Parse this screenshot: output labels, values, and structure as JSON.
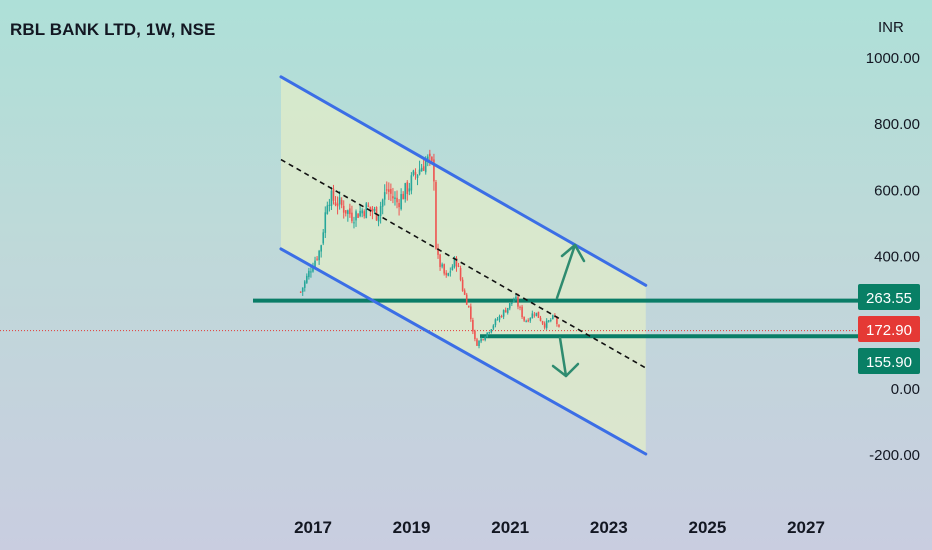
{
  "chart_data": {
    "type": "candlestick",
    "title": "RBL BANK LTD, 1W, NSE",
    "currency": "INR",
    "x_ticks": [
      "2017",
      "2019",
      "2021",
      "2023",
      "2025",
      "2027"
    ],
    "y_ticks": [
      "1000.00",
      "800.00",
      "600.00",
      "400.00",
      "0.00",
      "-200.00"
    ],
    "ylim": [
      -250,
      1000
    ],
    "xlim": [
      "2016-01",
      "2028-01"
    ],
    "price_path": [
      [
        "2016.75",
        290
      ],
      [
        "2016.95",
        360
      ],
      [
        "2017.15",
        420
      ],
      [
        "2017.3",
        580
      ],
      [
        "2017.5",
        560
      ],
      [
        "2017.8",
        520
      ],
      [
        "2018.1",
        545
      ],
      [
        "2018.3",
        525
      ],
      [
        "2018.5",
        600
      ],
      [
        "2018.7",
        560
      ],
      [
        "2018.9",
        600
      ],
      [
        "2019.1",
        650
      ],
      [
        "2019.3",
        690
      ],
      [
        "2019.45",
        660
      ],
      [
        "2019.5",
        400
      ],
      [
        "2019.7",
        330
      ],
      [
        "2019.9",
        390
      ],
      [
        "2020.05",
        290
      ],
      [
        "2020.15",
        250
      ],
      [
        "2020.3",
        130
      ],
      [
        "2020.5",
        160
      ],
      [
        "2020.7",
        200
      ],
      [
        "2020.9",
        235
      ],
      [
        "2021.1",
        270
      ],
      [
        "2021.3",
        200
      ],
      [
        "2021.5",
        230
      ],
      [
        "2021.7",
        190
      ],
      [
        "2021.9",
        215
      ],
      [
        "2022.0",
        172.9
      ]
    ],
    "channel": {
      "upper": [
        [
          "2016.35",
          940
        ],
        [
          "2023.75",
          310
        ]
      ],
      "lower": [
        [
          "2016.35",
          420
        ],
        [
          "2023.75",
          -200
        ]
      ],
      "mid": [
        [
          "2016.35",
          690
        ],
        [
          "2023.75",
          60
        ]
      ]
    },
    "support_levels": [
      263.55,
      155.9
    ],
    "current_price": 172.9,
    "price_badges": [
      {
        "label": "263.55",
        "color": "#087f65"
      },
      {
        "label": "172.90",
        "color": "#e53935"
      },
      {
        "label": "155.90",
        "color": "#087f65"
      }
    ],
    "colors": {
      "up_candle": "#26a69a",
      "down_candle": "#ef5350",
      "channel_line": "#3b6ee6",
      "level_line": "#0a7d67",
      "current_line": "#e53935",
      "arrow": "#2e8b6f",
      "channel_fill": "#e1ecc8"
    }
  }
}
